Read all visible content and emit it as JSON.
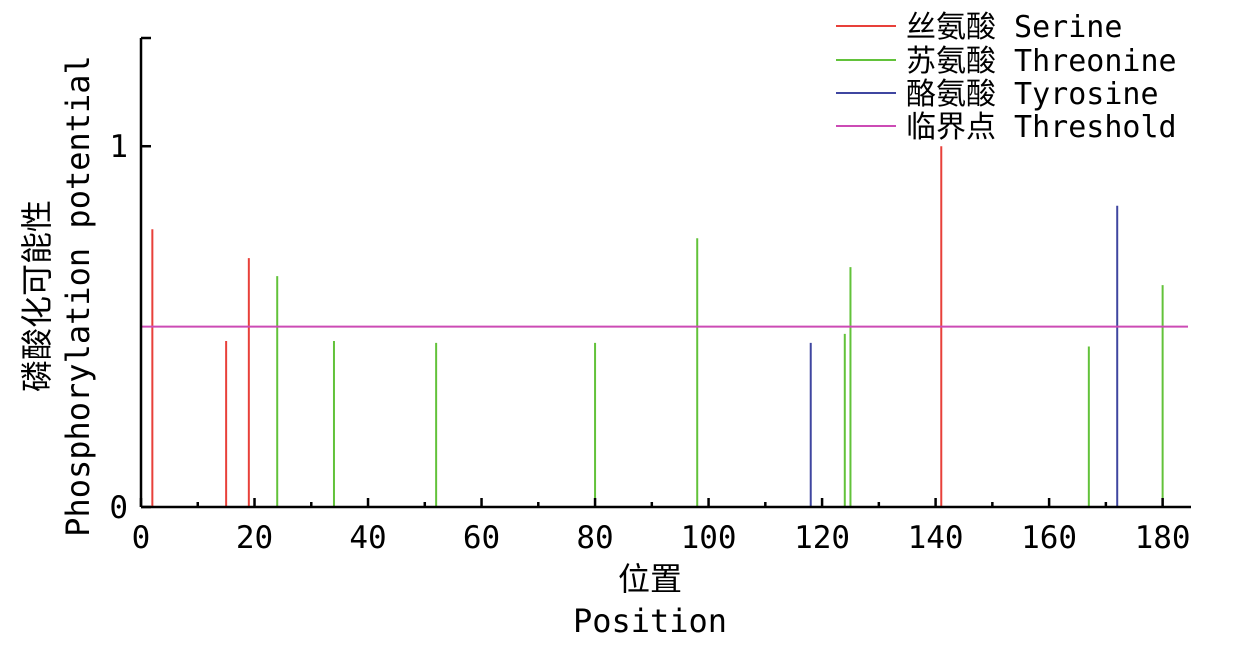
{
  "chart_data": {
    "type": "bar",
    "xlabel_zh": "位置",
    "xlabel_en": "Position",
    "ylabel_zh": "磷酸化可能性",
    "ylabel_en": "Phosphorylation potential",
    "xlim": [
      0,
      185
    ],
    "ylim": [
      0,
      1.3
    ],
    "xticks": [
      0,
      20,
      40,
      60,
      80,
      100,
      120,
      140,
      160,
      180
    ],
    "xtick_labels": [
      "0",
      "20",
      "40",
      "60",
      "80",
      "100",
      "120",
      "140",
      "160",
      "180"
    ],
    "yticks": [
      0,
      1
    ],
    "ytick_labels": [
      "0",
      "1"
    ],
    "threshold": 0.5,
    "legend_position": "top-right",
    "series": [
      {
        "name": "丝氨酸 Serine",
        "color": "#e8403a",
        "points": [
          {
            "x": 2,
            "y": 0.77
          },
          {
            "x": 15,
            "y": 0.46
          },
          {
            "x": 19,
            "y": 0.69
          },
          {
            "x": 141,
            "y": 1.0
          }
        ]
      },
      {
        "name": "苏氨酸 Threonine",
        "color": "#62c23a",
        "points": [
          {
            "x": 24,
            "y": 0.64
          },
          {
            "x": 34,
            "y": 0.46
          },
          {
            "x": 52,
            "y": 0.455
          },
          {
            "x": 80,
            "y": 0.455
          },
          {
            "x": 98,
            "y": 0.745
          },
          {
            "x": 124,
            "y": 0.48
          },
          {
            "x": 125,
            "y": 0.665
          },
          {
            "x": 167,
            "y": 0.445
          },
          {
            "x": 180,
            "y": 0.615
          }
        ]
      },
      {
        "name": "酪氨酸 Tyrosine",
        "color": "#3f46a0",
        "points": [
          {
            "x": 118,
            "y": 0.455
          },
          {
            "x": 172,
            "y": 0.835
          }
        ]
      }
    ],
    "threshold_series": {
      "name": "临界点 Threshold",
      "color": "#cc4bb5",
      "y": 0.5
    }
  }
}
